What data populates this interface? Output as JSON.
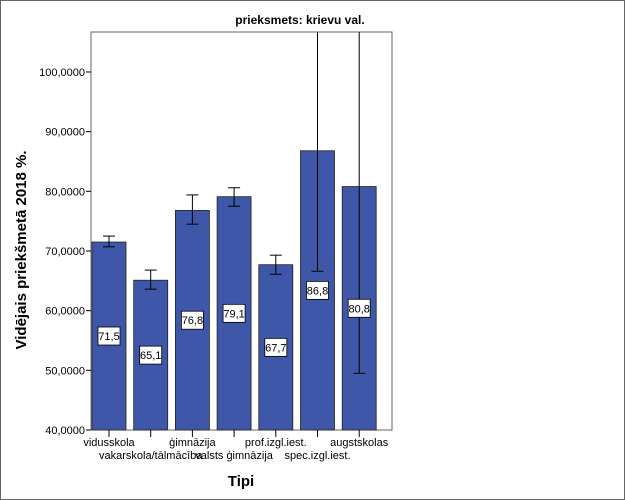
{
  "chart_data": {
    "type": "bar",
    "title": "prieksmets: krievu val.",
    "xlabel": "Tipi",
    "ylabel": "Vidējais priekšmetā 2018 %.",
    "ylim": [
      40,
      106.7
    ],
    "yticks": [
      40,
      50,
      60,
      70,
      80,
      90,
      100
    ],
    "ytick_labels": [
      "40,0000",
      "50,0000",
      "60,0000",
      "70,0000",
      "80,0000",
      "90,0000",
      "100,0000"
    ],
    "categories": [
      "vidusskola",
      "vakarskola/tālmācība",
      "ģimnāzija",
      "valsts ģimnāzija",
      "prof.izgl.iest.",
      "spec.izgl.iest.",
      "augstskolas"
    ],
    "values": [
      71.5,
      65.1,
      76.8,
      79.1,
      67.7,
      86.8,
      80.8
    ],
    "data_labels": [
      "71,5",
      "65,1",
      "76,8",
      "79,1",
      "67,7",
      "86,8",
      "80,8"
    ],
    "error_low": [
      70.7,
      63.6,
      74.5,
      77.5,
      66.1,
      66.6,
      49.5
    ],
    "error_high": [
      72.5,
      66.8,
      79.4,
      80.6,
      69.3,
      107.0,
      112.1
    ],
    "grid": false,
    "bar_color": "#3f57a8"
  }
}
